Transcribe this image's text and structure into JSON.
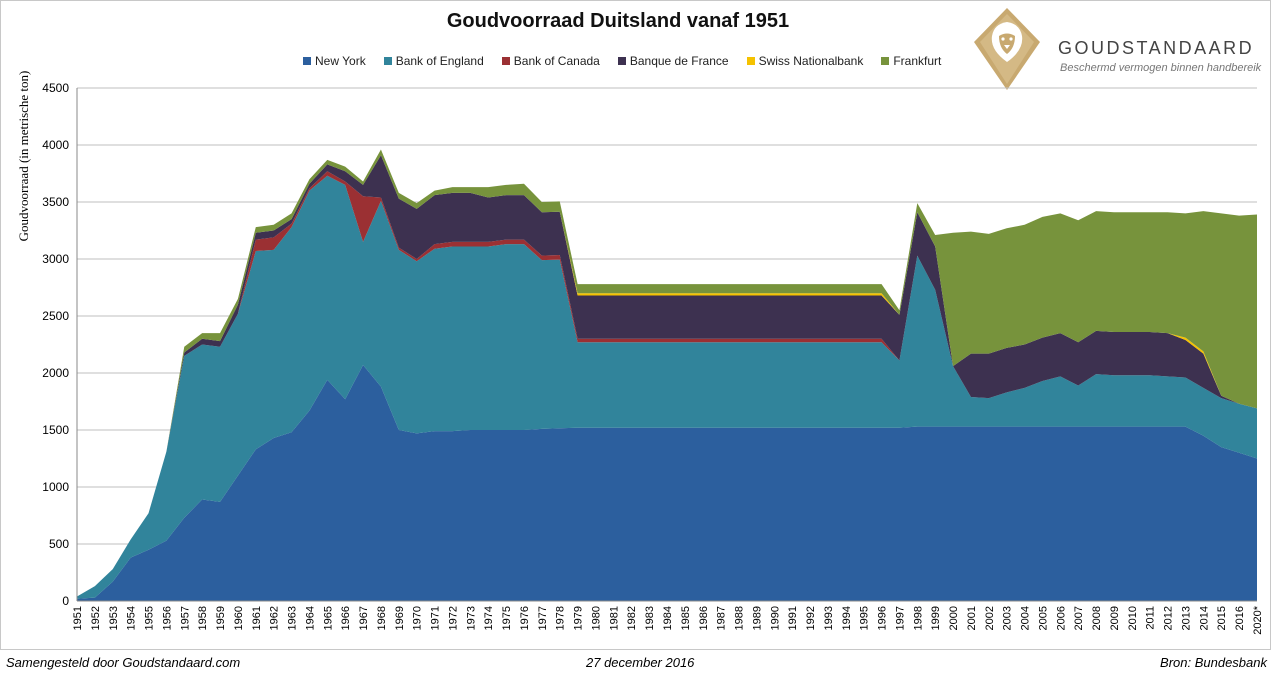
{
  "colors": {
    "New York": "#2c5f9e",
    "Bank of England": "#31849b",
    "Bank of Canada": "#9b3033",
    "Banque de France": "#3d3150",
    "Swiss Nationalbank": "#f5c200",
    "Frankfurt": "#77933c",
    "logo_gold": "#c8a970",
    "grid": "#bfbfbf"
  },
  "branding": {
    "name": "GOUDSTANDAARD",
    "tagline": "Beschermd vermogen binnen handbereik",
    "logo_icon": "lion-head-icon"
  },
  "footer": {
    "left": "Samengesteld door Goudstandaard.com",
    "center": "27 december 2016",
    "right": "Bron: Bundesbank"
  },
  "chart_data": {
    "type": "area",
    "stacked": true,
    "title": "Goudvoorraad Duitsland vanaf 1951",
    "ylabel": "Goudvoorraad (in metrische ton)",
    "xlabel": "",
    "ylim": [
      0,
      4500
    ],
    "yticks": [
      0,
      500,
      1000,
      1500,
      2000,
      2500,
      3000,
      3500,
      4000,
      4500
    ],
    "grid": true,
    "legend_position": "top",
    "categories": [
      "1951",
      "1952",
      "1953",
      "1954",
      "1955",
      "1956",
      "1957",
      "1958",
      "1959",
      "1960",
      "1961",
      "1962",
      "1963",
      "1964",
      "1965",
      "1966",
      "1967",
      "1968",
      "1969",
      "1970",
      "1971",
      "1972",
      "1973",
      "1974",
      "1975",
      "1976",
      "1977",
      "1978",
      "1979",
      "1980",
      "1981",
      "1982",
      "1983",
      "1984",
      "1985",
      "1986",
      "1987",
      "1988",
      "1989",
      "1990",
      "1991",
      "1992",
      "1993",
      "1994",
      "1995",
      "1996",
      "1997",
      "1998",
      "1999",
      "2000",
      "2001",
      "2002",
      "2003",
      "2004",
      "2005",
      "2006",
      "2007",
      "2008",
      "2009",
      "2010",
      "2011",
      "2012",
      "2013",
      "2014",
      "2015",
      "2016",
      "2020*"
    ],
    "series": [
      {
        "name": "New York",
        "values": [
          20,
          30,
          170,
          380,
          450,
          530,
          730,
          890,
          870,
          1100,
          1330,
          1430,
          1480,
          1670,
          1940,
          1770,
          2070,
          1880,
          1500,
          1470,
          1490,
          1490,
          1500,
          1500,
          1500,
          1500,
          1510,
          1515,
          1520,
          1520,
          1520,
          1520,
          1520,
          1520,
          1520,
          1520,
          1520,
          1520,
          1520,
          1520,
          1520,
          1520,
          1520,
          1520,
          1520,
          1520,
          1520,
          1530,
          1530,
          1530,
          1530,
          1530,
          1530,
          1530,
          1530,
          1530,
          1530,
          1530,
          1530,
          1530,
          1530,
          1530,
          1530,
          1450,
          1350,
          1300,
          1250
        ]
      },
      {
        "name": "Bank of England",
        "values": [
          20,
          100,
          110,
          160,
          320,
          780,
          1420,
          1360,
          1360,
          1420,
          1740,
          1650,
          1800,
          1930,
          1790,
          1880,
          1080,
          1630,
          1580,
          1510,
          1600,
          1620,
          1610,
          1610,
          1630,
          1630,
          1480,
          1480,
          750,
          750,
          750,
          750,
          750,
          750,
          750,
          750,
          750,
          750,
          750,
          750,
          750,
          750,
          750,
          750,
          750,
          750,
          590,
          1500,
          1200,
          530,
          260,
          250,
          300,
          340,
          400,
          440,
          360,
          460,
          450,
          450,
          450,
          440,
          430,
          420,
          430,
          430,
          440
        ]
      },
      {
        "name": "Bank of Canada",
        "values": [
          0,
          0,
          0,
          0,
          0,
          0,
          0,
          0,
          0,
          0,
          100,
          110,
          30,
          20,
          40,
          30,
          400,
          30,
          20,
          20,
          40,
          40,
          40,
          40,
          40,
          40,
          40,
          40,
          30,
          30,
          30,
          30,
          30,
          30,
          30,
          30,
          30,
          30,
          30,
          30,
          30,
          30,
          30,
          30,
          30,
          30,
          0,
          0,
          0,
          0,
          0,
          0,
          0,
          0,
          0,
          0,
          0,
          0,
          0,
          0,
          0,
          0,
          0,
          0,
          0,
          0,
          0
        ]
      },
      {
        "name": "Banque de France",
        "values": [
          0,
          0,
          0,
          0,
          0,
          0,
          30,
          50,
          50,
          80,
          60,
          60,
          40,
          40,
          60,
          90,
          100,
          370,
          430,
          440,
          430,
          430,
          430,
          390,
          390,
          390,
          380,
          380,
          380,
          380,
          380,
          380,
          380,
          380,
          380,
          380,
          380,
          380,
          380,
          380,
          380,
          380,
          380,
          380,
          380,
          380,
          400,
          380,
          380,
          0,
          380,
          390,
          390,
          380,
          380,
          380,
          380,
          380,
          380,
          380,
          380,
          380,
          330,
          300,
          20,
          0,
          0
        ]
      },
      {
        "name": "Swiss Nationalbank",
        "values": [
          0,
          0,
          0,
          0,
          0,
          0,
          0,
          0,
          0,
          0,
          0,
          0,
          0,
          0,
          0,
          0,
          0,
          0,
          0,
          0,
          0,
          0,
          0,
          0,
          0,
          0,
          0,
          0,
          20,
          20,
          20,
          20,
          20,
          20,
          20,
          20,
          20,
          20,
          20,
          20,
          20,
          20,
          20,
          20,
          20,
          20,
          0,
          0,
          0,
          0,
          0,
          0,
          0,
          0,
          0,
          0,
          0,
          0,
          0,
          0,
          0,
          0,
          20,
          20,
          0,
          0,
          0
        ]
      },
      {
        "name": "Frankfurt",
        "values": [
          0,
          0,
          0,
          0,
          0,
          0,
          50,
          50,
          70,
          50,
          50,
          50,
          50,
          40,
          40,
          40,
          30,
          50,
          50,
          50,
          40,
          50,
          50,
          90,
          90,
          100,
          90,
          90,
          80,
          80,
          80,
          80,
          80,
          80,
          80,
          80,
          80,
          80,
          80,
          80,
          80,
          80,
          80,
          80,
          80,
          80,
          40,
          80,
          100,
          1170,
          1070,
          1050,
          1050,
          1050,
          1060,
          1050,
          1070,
          1050,
          1050,
          1050,
          1050,
          1060,
          1090,
          1230,
          1600,
          1650,
          1700
        ]
      }
    ]
  }
}
